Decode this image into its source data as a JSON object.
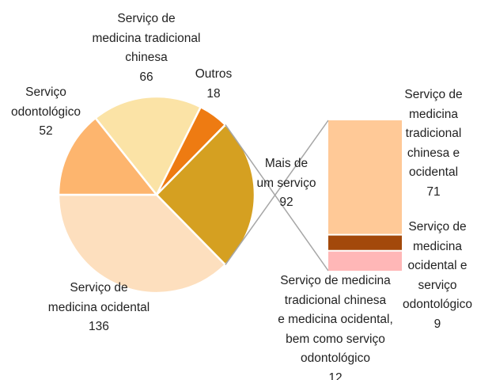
{
  "chart_data": {
    "type": "pie",
    "categories": [
      "Serviço de medicina ocidental",
      "Serviço odontológico",
      "Serviço de medicina tradicional chinesa",
      "Outros",
      "Mais de um serviço"
    ],
    "values": [
      136,
      52,
      66,
      18,
      92
    ],
    "colors": [
      "#FDDFBE",
      "#FDB56E",
      "#FBE3A6",
      "#EE7B12",
      "#D5A021"
    ],
    "breakdown": {
      "type": "bar",
      "categories": [
        "Serviço de medicina tradicional chinesa e ocidental",
        "Serviço de medicina ocidental e serviço odontológico",
        "Serviço de medicina tradicional chinesa e medicina ocidental, bem como serviço odontológico"
      ],
      "values": [
        71,
        9,
        12
      ],
      "colors": [
        "#FFC997",
        "#A3490B",
        "#FFB7B7"
      ]
    }
  }
}
